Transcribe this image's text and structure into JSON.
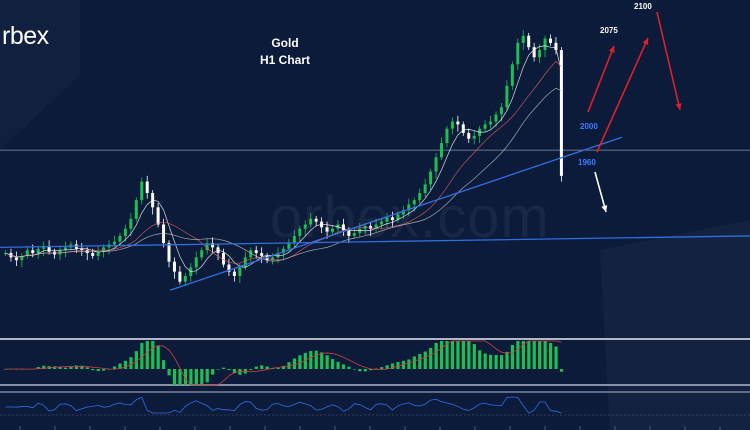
{
  "brand": {
    "name_prefix": "orbe",
    "name_suffix": "x",
    "name_visible": "rbex",
    "watermark": "orbex.com"
  },
  "chart_title": {
    "line1": "Gold",
    "line2": "H1 Chart"
  },
  "colors": {
    "background": "#0c1b3a",
    "bull_candle": "#1fbd52",
    "bear_candle": "#ffffff",
    "trendline": "#2f6fe0",
    "level_label": "#3a7dff",
    "arrow_up": "#e0202a",
    "arrow_down": "#ffffff",
    "macd_hist": "#1fbd52",
    "signal_line": "#d04040",
    "oscillator": "#2f6fe0",
    "panel_border": "#b0b8c8"
  },
  "chart_data": {
    "type": "candlestick",
    "instrument": "Gold",
    "timeframe": "H1",
    "price_range": [
      1880,
      2115
    ],
    "current_price": 1992,
    "horizontal_line_price": 2010,
    "trendlines": [
      {
        "name": "support",
        "from_price": 1912,
        "to_price": 1977
      },
      {
        "name": "horizontal",
        "from_price": 1936,
        "to_price": 1942
      }
    ],
    "levels": [
      {
        "label": "2100",
        "color_role": "white"
      },
      {
        "label": "2075",
        "color_role": "white"
      },
      {
        "label": "2000",
        "color_role": "blue"
      },
      {
        "label": "1960",
        "color_role": "blue"
      }
    ],
    "scenarios": [
      {
        "direction": "up",
        "from": 2000,
        "to": 2075
      },
      {
        "direction": "up",
        "from": 1960,
        "to": 2100
      },
      {
        "direction": "down",
        "from": 2100,
        "to": 2010
      },
      {
        "direction": "down",
        "from": 1960,
        "to": 1925
      }
    ],
    "close_prices": [
      1938,
      1935,
      1933,
      1936,
      1940,
      1938,
      1941,
      1943,
      1939,
      1937,
      1940,
      1942,
      1944,
      1941,
      1940,
      1938,
      1936,
      1939,
      1942,
      1944,
      1946,
      1950,
      1955,
      1962,
      1975,
      1988,
      1980,
      1970,
      1958,
      1945,
      1932,
      1925,
      1918,
      1922,
      1928,
      1935,
      1940,
      1945,
      1942,
      1938,
      1930,
      1925,
      1922,
      1928,
      1935,
      1940,
      1938,
      1936,
      1933,
      1935,
      1938,
      1941,
      1945,
      1950,
      1955,
      1958,
      1962,
      1960,
      1956,
      1953,
      1955,
      1958,
      1954,
      1950,
      1952,
      1955,
      1957,
      1955,
      1958,
      1960,
      1963,
      1961,
      1965,
      1968,
      1972,
      1975,
      1980,
      1986,
      1995,
      2005,
      2015,
      2025,
      2030,
      2028,
      2022,
      2018,
      2020,
      2025,
      2028,
      2030,
      2035,
      2040,
      2055,
      2070,
      2085,
      2090,
      2082,
      2075,
      2080,
      2088,
      2085,
      2080,
      1992
    ]
  },
  "indicators": {
    "macd": "histogram",
    "oscillator": "line"
  }
}
